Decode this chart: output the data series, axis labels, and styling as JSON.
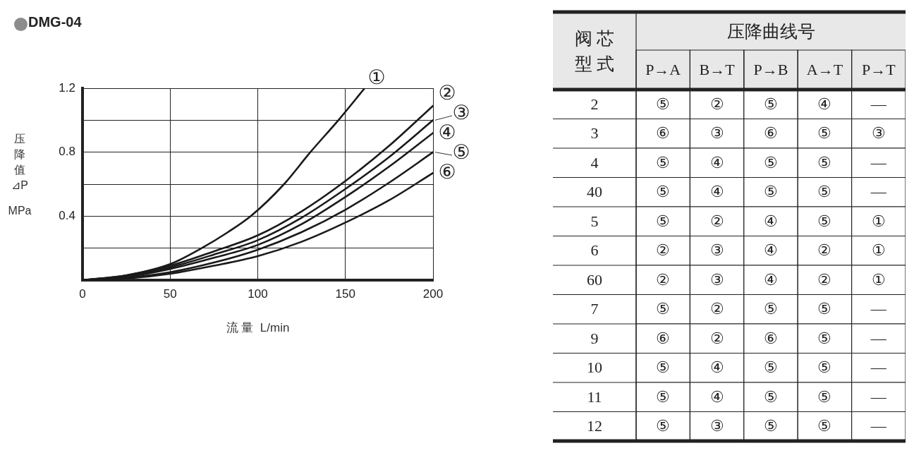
{
  "chart_data": [
    {
      "type": "line",
      "title": "DMG-04",
      "xlabel": "流 量  L/min",
      "ylabel": "压降值⊿P MPa",
      "xlim": [
        0,
        200
      ],
      "ylim": [
        0,
        1.2
      ],
      "xticks": [
        0,
        50,
        100,
        150,
        200
      ],
      "yticks": [
        {
          "value": 0,
          "label": null
        },
        {
          "value": 0.2,
          "label": null
        },
        0.4,
        {
          "value": 0.6,
          "label": null
        },
        0.8,
        {
          "value": 1.0,
          "label": null
        },
        1.2
      ],
      "grid": true,
      "legend": false,
      "marker": "none",
      "line_style": "solid",
      "series": [
        {
          "name": "①",
          "color": "#1a1a1a",
          "x": [
            0,
            25,
            50,
            68,
            83,
            96,
            115,
            130,
            146,
            161
          ],
          "values": [
            0,
            0.03,
            0.1,
            0.2,
            0.3,
            0.4,
            0.6,
            0.8,
            1.0,
            1.2
          ]
        },
        {
          "name": "②",
          "color": "#1a1a1a",
          "x": [
            0,
            25,
            50,
            75,
            100,
            125,
            150,
            175,
            200
          ],
          "values": [
            0,
            0.03,
            0.09,
            0.18,
            0.28,
            0.43,
            0.62,
            0.84,
            1.09
          ]
        },
        {
          "name": "③",
          "color": "#1a1a1a",
          "x": [
            0,
            25,
            50,
            75,
            100,
            125,
            150,
            175,
            200
          ],
          "values": [
            0,
            0.025,
            0.08,
            0.16,
            0.25,
            0.39,
            0.57,
            0.77,
            1.0
          ]
        },
        {
          "name": "④",
          "color": "#1a1a1a",
          "x": [
            0,
            25,
            50,
            75,
            100,
            125,
            150,
            175,
            200
          ],
          "values": [
            0,
            0.02,
            0.07,
            0.14,
            0.22,
            0.35,
            0.52,
            0.71,
            0.92
          ]
        },
        {
          "name": "⑤",
          "color": "#1a1a1a",
          "x": [
            0,
            25,
            50,
            75,
            100,
            125,
            150,
            175,
            200
          ],
          "values": [
            0,
            0.015,
            0.05,
            0.11,
            0.19,
            0.3,
            0.44,
            0.61,
            0.8
          ]
        },
        {
          "name": "⑥",
          "color": "#1a1a1a",
          "x": [
            0,
            25,
            50,
            75,
            100,
            125,
            150,
            175,
            200
          ],
          "values": [
            0,
            0.01,
            0.04,
            0.09,
            0.15,
            0.24,
            0.36,
            0.5,
            0.67
          ]
        }
      ]
    },
    {
      "type": "heatmap",
      "title": "压降曲线号",
      "ylabel": "阀芯型式",
      "categories": [
        "P→A",
        "B→T",
        "P→B",
        "A→T",
        "P→T"
      ],
      "y_categories": [
        "2",
        "3",
        "4",
        "40",
        "5",
        "6",
        "60",
        "7",
        "9",
        "10",
        "11",
        "12"
      ],
      "cells": [
        [
          null,
          null,
          null,
          null,
          null
        ],
        [
          null,
          null,
          null,
          null,
          null
        ],
        [
          null,
          null,
          null,
          null,
          null
        ],
        [
          null,
          null,
          null,
          null,
          null
        ],
        [
          null,
          null,
          null,
          null,
          null
        ],
        [
          null,
          null,
          null,
          null,
          null
        ],
        [
          null,
          null,
          null,
          null,
          null
        ],
        [
          null,
          null,
          null,
          null,
          null
        ],
        [
          null,
          null,
          null,
          null,
          null
        ],
        [
          null,
          null,
          null,
          null,
          null
        ],
        [
          null,
          null,
          null,
          null,
          null
        ],
        [
          null,
          null,
          null,
          null,
          null
        ]
      ],
      "cell_labels": [
        [
          "⑤",
          "②",
          "⑤",
          "④",
          "—"
        ],
        [
          "⑥",
          "③",
          "⑥",
          "⑤",
          "③"
        ],
        [
          "⑤",
          "④",
          "⑤",
          "⑤",
          "—"
        ],
        [
          "⑤",
          "④",
          "⑤",
          "⑤",
          "—"
        ],
        [
          "⑤",
          "②",
          "④",
          "⑤",
          "①"
        ],
        [
          "②",
          "③",
          "④",
          "②",
          "①"
        ],
        [
          "②",
          "③",
          "④",
          "②",
          "①"
        ],
        [
          "⑤",
          "②",
          "⑤",
          "⑤",
          "—"
        ],
        [
          "⑥",
          "②",
          "⑥",
          "⑤",
          "—"
        ],
        [
          "⑤",
          "④",
          "⑤",
          "⑤",
          "—"
        ],
        [
          "⑤",
          "④",
          "⑤",
          "⑤",
          "—"
        ],
        [
          "⑤",
          "③",
          "⑤",
          "⑤",
          "—"
        ]
      ]
    }
  ]
}
